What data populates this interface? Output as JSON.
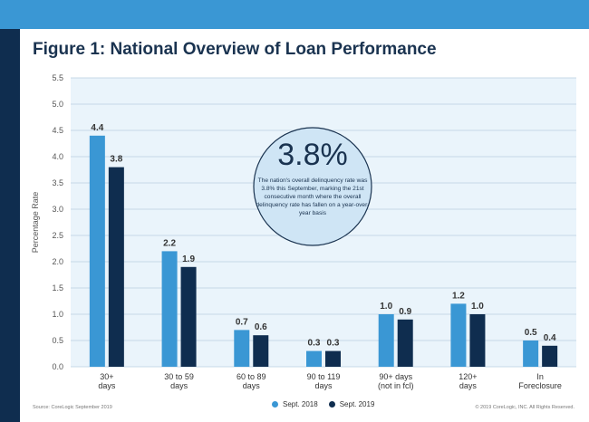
{
  "page": {
    "title": "Figure 1: National Overview of Loan Performance",
    "source": "Source: CoreLogic September 2019",
    "copyright": "© 2019 CoreLogic, INC. All Rights Reserved.",
    "callout": {
      "value": "3.8%",
      "text": "The nation's overall delinquency rate was 3.8% this September, marking the 21st consecutive month where the overall delinquency rate has fallen on a year-over-year basis"
    }
  },
  "colors": {
    "header": "#3a97d4",
    "sidebar": "#0f2d4f",
    "plot_bg": "#eaf4fb",
    "series1": "#3a97d4",
    "series2": "#0f2d4f",
    "callout_fill": "#cfe5f5",
    "callout_stroke": "#1a3350"
  },
  "chart_data": {
    "type": "bar",
    "title": "Figure 1: National Overview of Loan Performance",
    "xlabel": "",
    "ylabel": "Percentage Rate",
    "ylim": [
      0,
      5.5
    ],
    "yticks": [
      "0.0",
      "0.5",
      "1.0",
      "1.5",
      "2.0",
      "2.5",
      "3.0",
      "3.5",
      "4.0",
      "4.5",
      "5.0",
      "5.5"
    ],
    "grid": true,
    "legend_position": "bottom-center",
    "categories": [
      [
        "30+",
        "days"
      ],
      [
        "30 to 59",
        "days"
      ],
      [
        "60 to 89",
        "days"
      ],
      [
        "90 to 119",
        "days"
      ],
      [
        "90+ days",
        "(not in fcl)"
      ],
      [
        "120+",
        "days"
      ],
      [
        "In",
        "Foreclosure"
      ]
    ],
    "series": [
      {
        "name": "Sept. 2018",
        "values": [
          4.4,
          2.2,
          0.7,
          0.3,
          1.0,
          1.2,
          0.5
        ],
        "labels": [
          "4.4",
          "2.2",
          "0.7",
          "0.3",
          "1.0",
          "1.2",
          "0.5"
        ]
      },
      {
        "name": "Sept. 2019",
        "values": [
          3.8,
          1.9,
          0.6,
          0.3,
          0.9,
          1.0,
          0.4
        ],
        "labels": [
          "3.8",
          "1.9",
          "0.6",
          "0.3",
          "0.9",
          "1.0",
          "0.4"
        ]
      }
    ]
  }
}
